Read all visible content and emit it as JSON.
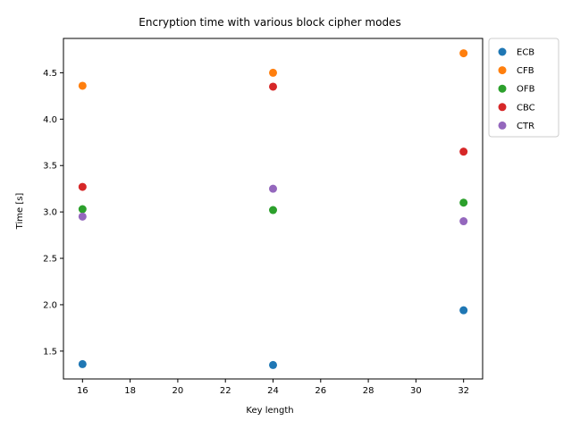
{
  "chart_data": {
    "type": "scatter",
    "title": "Encryption time with various block cipher modes",
    "xlabel": "Key length",
    "ylabel": "Time [s]",
    "xlim": [
      15.2,
      32.8
    ],
    "ylim": [
      1.2,
      4.87
    ],
    "xticks": [
      16,
      18,
      20,
      22,
      24,
      26,
      28,
      30,
      32
    ],
    "yticks": [
      1.5,
      2.0,
      2.5,
      3.0,
      3.5,
      4.0,
      4.5
    ],
    "grid": false,
    "legend": "outside-right-top",
    "series": [
      {
        "name": "ECB",
        "color": "#1f77b4",
        "x": [
          16,
          24,
          32
        ],
        "y": [
          1.36,
          1.35,
          1.94
        ]
      },
      {
        "name": "CFB",
        "color": "#ff7f0e",
        "x": [
          16,
          24,
          32
        ],
        "y": [
          4.36,
          4.5,
          4.71
        ]
      },
      {
        "name": "OFB",
        "color": "#2ca02c",
        "x": [
          16,
          24,
          32
        ],
        "y": [
          3.03,
          3.02,
          3.1
        ]
      },
      {
        "name": "CBC",
        "color": "#d62728",
        "x": [
          16,
          24,
          32
        ],
        "y": [
          3.27,
          4.35,
          3.65
        ]
      },
      {
        "name": "CTR",
        "color": "#9467bd",
        "x": [
          16,
          24,
          32
        ],
        "y": [
          2.95,
          3.25,
          2.9
        ]
      }
    ]
  }
}
